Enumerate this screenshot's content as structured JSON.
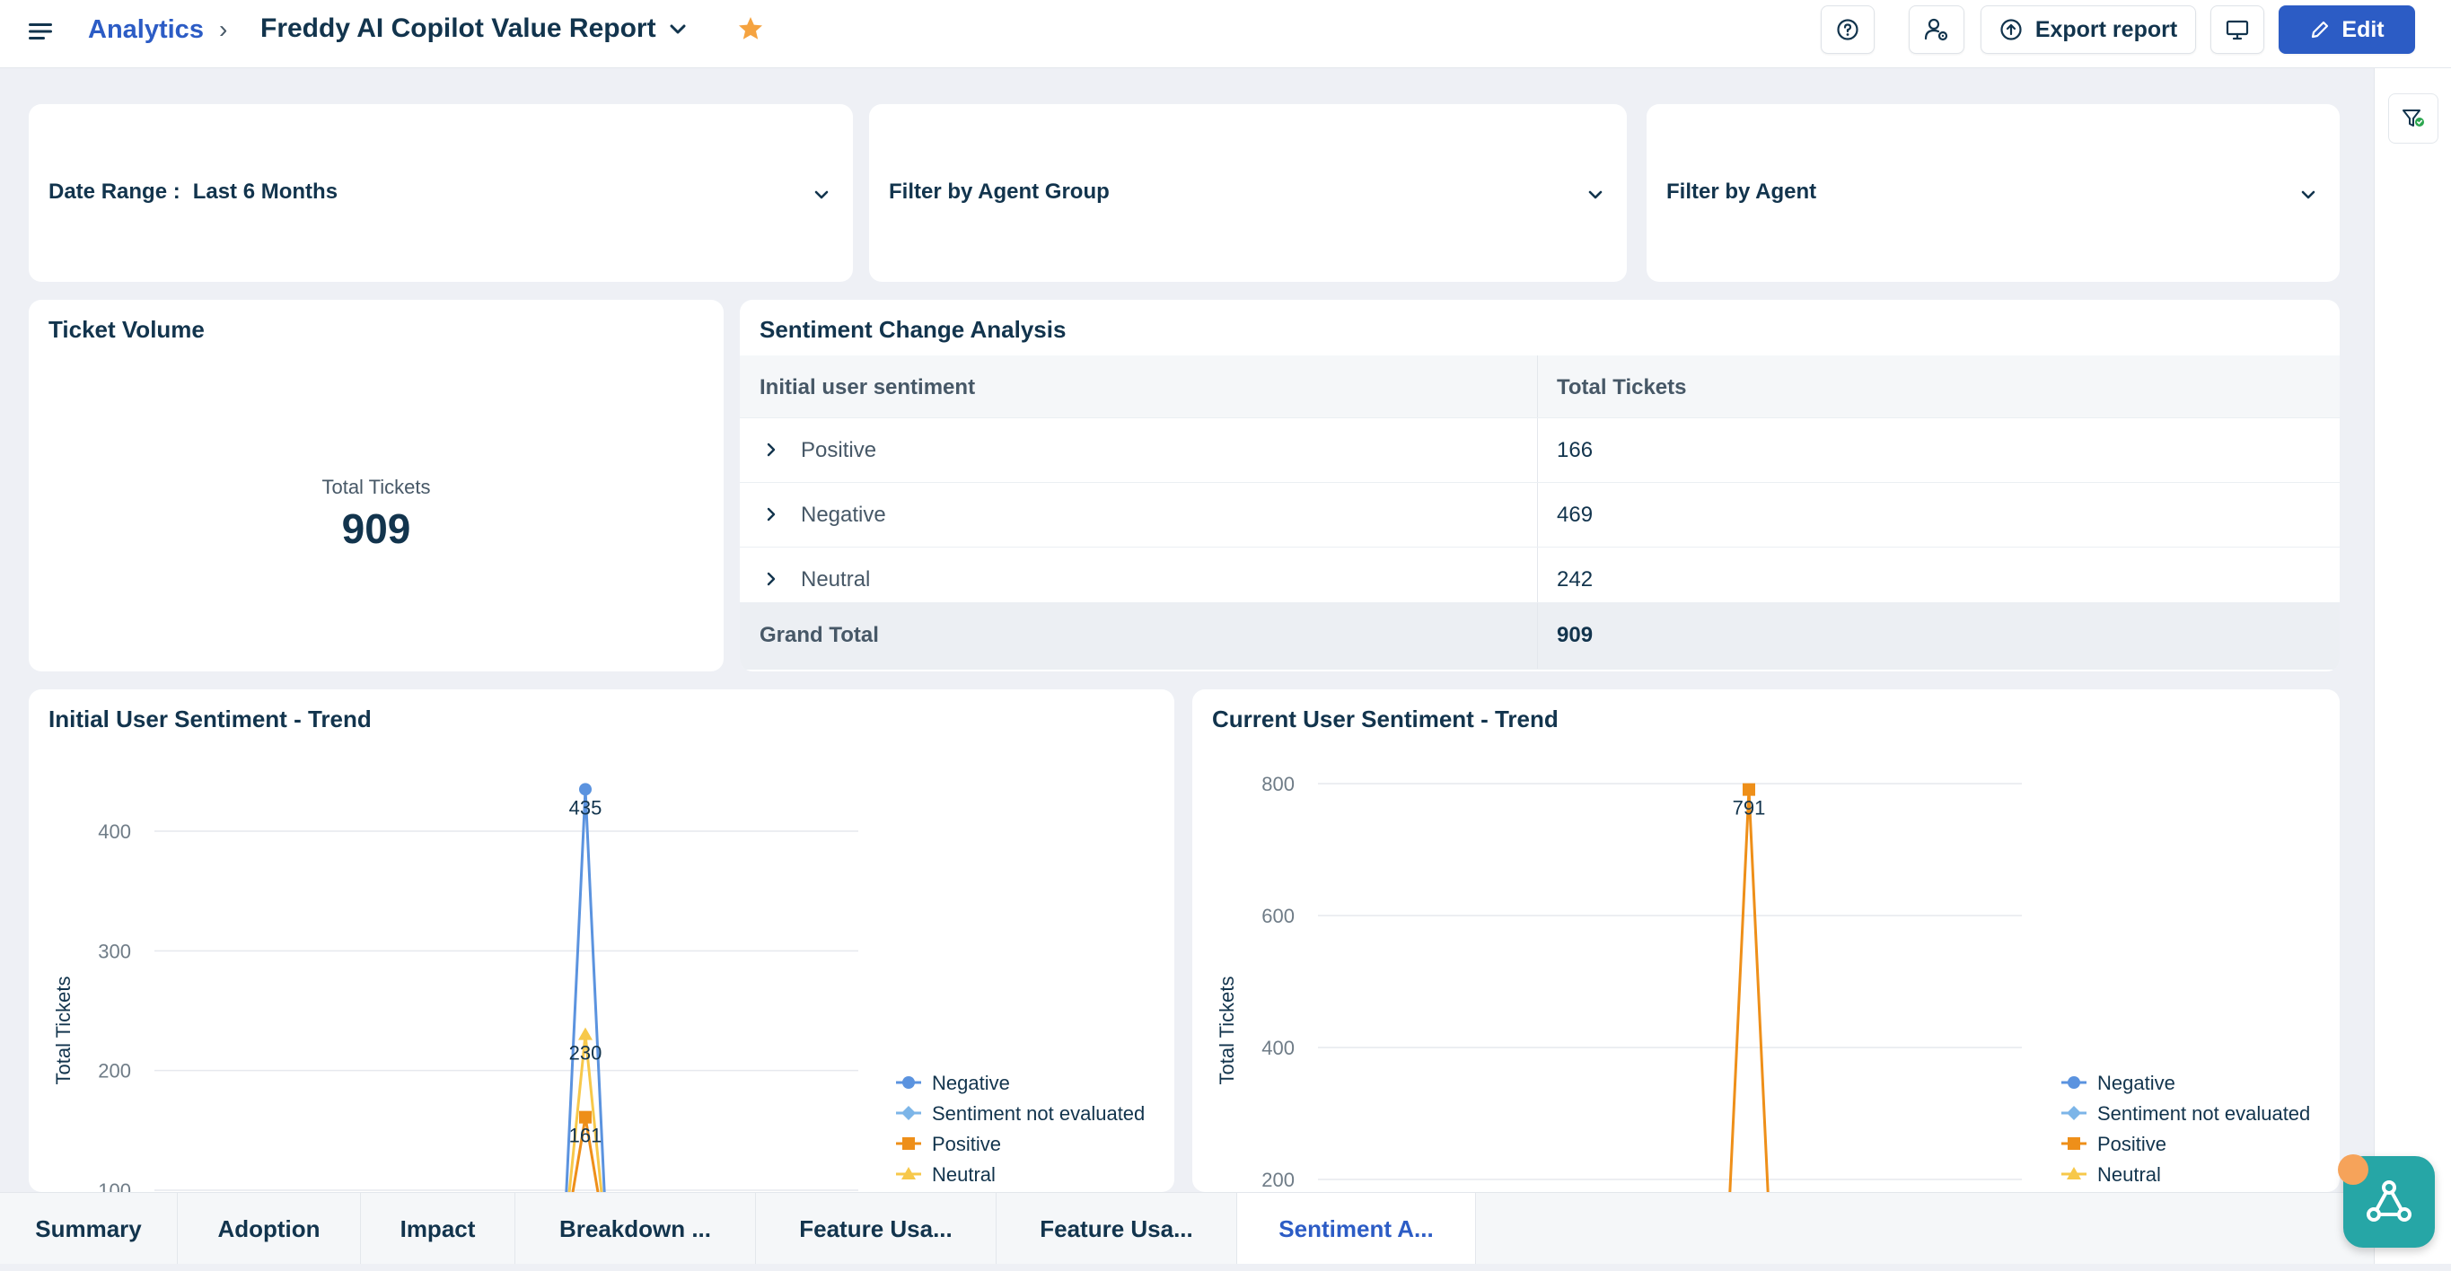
{
  "header": {
    "breadcrumb": "Analytics",
    "breadcrumb_sep": "›",
    "report_title": "Freddy AI Copilot Value Report",
    "export_label": "Export report",
    "edit_label": "Edit"
  },
  "filters": {
    "date_range_label": "Date Range :",
    "date_range_value": "Last 6 Months",
    "agent_group_label": "Filter by Agent Group",
    "agent_label": "Filter by Agent"
  },
  "ticket_volume": {
    "title": "Ticket Volume",
    "label": "Total Tickets",
    "value": "909"
  },
  "sentiment_change": {
    "title": "Sentiment Change Analysis",
    "col1": "Initial user sentiment",
    "col2": "Total Tickets",
    "rows": [
      {
        "label": "Positive",
        "value": "166"
      },
      {
        "label": "Negative",
        "value": "469"
      },
      {
        "label": "Neutral",
        "value": "242"
      }
    ],
    "total_label": "Grand Total",
    "total_value": "909"
  },
  "chart_data": [
    {
      "type": "line",
      "title": "Initial User Sentiment - Trend",
      "ylabel": "Total Tickets",
      "yticks": [
        100,
        200,
        300,
        400
      ],
      "series": [
        {
          "name": "Negative",
          "color": "#5b93df",
          "marker": "circle",
          "peak": 435
        },
        {
          "name": "Sentiment not evaluated",
          "color": "#7cb5e8",
          "marker": "diamond",
          "peak": null
        },
        {
          "name": "Positive",
          "color": "#ee8f19",
          "marker": "square",
          "peak": 161
        },
        {
          "name": "Neutral",
          "color": "#f7c84a",
          "marker": "triangle",
          "peak": 230
        }
      ],
      "data_labels": [
        "435",
        "230",
        "161"
      ],
      "grid": true,
      "legend": "right"
    },
    {
      "type": "line",
      "title": "Current User Sentiment - Trend",
      "ylabel": "Total Tickets",
      "yticks": [
        200,
        400,
        600,
        800
      ],
      "series": [
        {
          "name": "Negative",
          "color": "#5b93df",
          "marker": "circle",
          "peak": null
        },
        {
          "name": "Sentiment not evaluated",
          "color": "#7cb5e8",
          "marker": "diamond",
          "peak": null
        },
        {
          "name": "Positive",
          "color": "#ee8f19",
          "marker": "square",
          "peak": 791
        },
        {
          "name": "Neutral",
          "color": "#f7c84a",
          "marker": "triangle",
          "peak": null
        }
      ],
      "data_labels": [
        "791"
      ],
      "grid": true,
      "legend": "right"
    }
  ],
  "tabs": [
    "Summary",
    "Adoption",
    "Impact",
    "Breakdown ...",
    "Feature Usa...",
    "Feature Usa...",
    "Sentiment A..."
  ],
  "active_tab": "Sentiment A...",
  "colors": {
    "primary": "#2c5cc5",
    "star": "#f5a340",
    "assistant": "#26a6a6"
  }
}
